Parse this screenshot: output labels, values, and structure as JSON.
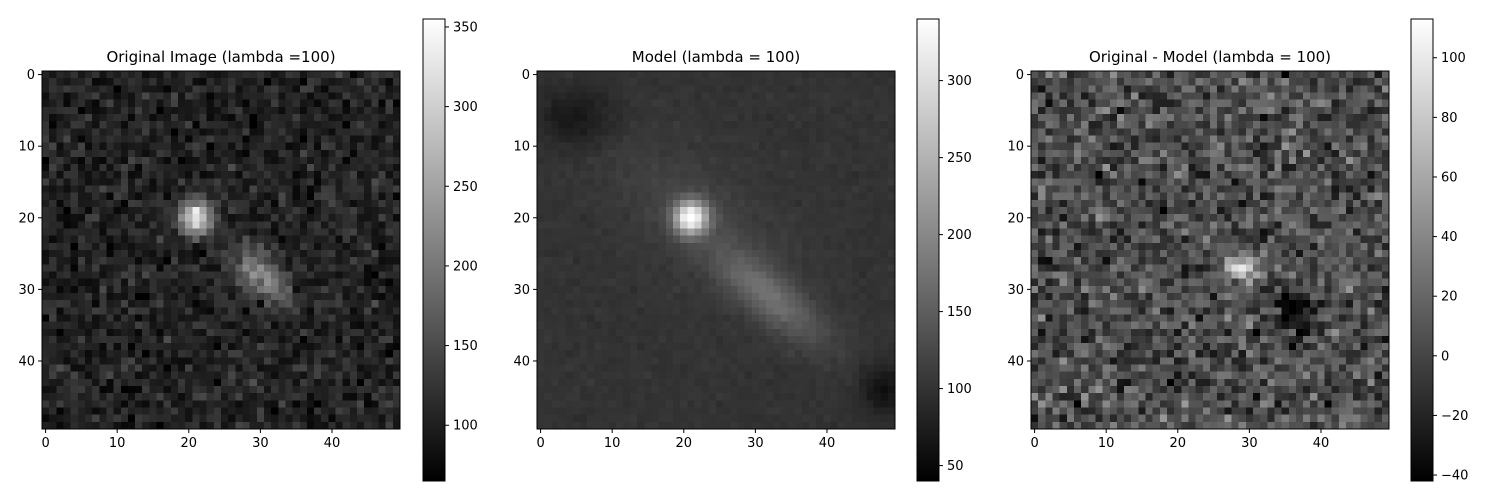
{
  "chart_data": [
    {
      "type": "heatmap",
      "title": "Original Image (lambda =100)",
      "xlabel": "",
      "ylabel": "",
      "grid": false,
      "colormap": "gray",
      "shape": [
        50,
        50
      ],
      "xlim": [
        -0.5,
        49.5
      ],
      "ylim": [
        49.5,
        -0.5
      ],
      "xticks": [
        0,
        10,
        20,
        30,
        40
      ],
      "yticks": [
        0,
        10,
        20,
        30,
        40
      ],
      "colorbar": {
        "min": 65,
        "max": 355,
        "ticks": [
          100,
          150,
          200,
          250,
          300,
          350
        ]
      },
      "background": {
        "level": 105,
        "noise": 18
      },
      "features": [
        {
          "kind": "point-source",
          "x": 21,
          "y": 20,
          "amplitude": 240,
          "sigma_x": 1.6,
          "sigma_y": 1.6,
          "angle_deg": 0
        },
        {
          "kind": "extended",
          "x": 30,
          "y": 28,
          "amplitude": 115,
          "sigma_x": 3.2,
          "sigma_y": 1.9,
          "angle_deg": 40
        }
      ]
    },
    {
      "type": "heatmap",
      "title": "Model (lambda = 100)",
      "xlabel": "",
      "ylabel": "",
      "grid": false,
      "colormap": "gray",
      "shape": [
        50,
        50
      ],
      "xlim": [
        -0.5,
        49.5
      ],
      "ylim": [
        49.5,
        -0.5
      ],
      "xticks": [
        0,
        10,
        20,
        30,
        40
      ],
      "yticks": [
        0,
        10,
        20,
        30,
        40
      ],
      "colorbar": {
        "min": 40,
        "max": 340,
        "ticks": [
          50,
          100,
          150,
          200,
          250,
          300
        ]
      },
      "background": {
        "level": 100,
        "noise": 3
      },
      "features": [
        {
          "kind": "point-source",
          "x": 21,
          "y": 20,
          "amplitude": 235,
          "sigma_x": 1.6,
          "sigma_y": 1.6,
          "angle_deg": 0
        },
        {
          "kind": "extended",
          "x": 32,
          "y": 31,
          "amplitude": 65,
          "sigma_x": 6.5,
          "sigma_y": 2.2,
          "angle_deg": 40
        },
        {
          "kind": "diffuse",
          "x": 22,
          "y": 20,
          "amplitude": 20,
          "sigma_x": 12,
          "sigma_y": 5,
          "angle_deg": 40
        },
        {
          "kind": "depression",
          "x": 5,
          "y": 6,
          "amplitude": -35,
          "sigma_x": 4,
          "sigma_y": 3,
          "angle_deg": 0
        },
        {
          "kind": "depression",
          "x": 48,
          "y": 44,
          "amplitude": -40,
          "sigma_x": 2.5,
          "sigma_y": 2.5,
          "angle_deg": 0
        }
      ]
    },
    {
      "type": "heatmap",
      "title": "Original - Model (lambda = 100)",
      "xlabel": "",
      "ylabel": "",
      "grid": false,
      "colormap": "gray",
      "shape": [
        50,
        50
      ],
      "xlim": [
        -0.5,
        49.5
      ],
      "ylim": [
        49.5,
        -0.5
      ],
      "xticks": [
        0,
        10,
        20,
        30,
        40
      ],
      "yticks": [
        0,
        10,
        20,
        30,
        40
      ],
      "colorbar": {
        "min": -42,
        "max": 113,
        "ticks": [
          -40,
          -20,
          0,
          20,
          40,
          60,
          80,
          100
        ]
      },
      "background": {
        "level": 5,
        "noise": 17
      },
      "features": [
        {
          "kind": "residual-peak",
          "x": 29,
          "y": 27,
          "amplitude": 85,
          "sigma_x": 1.6,
          "sigma_y": 1.3,
          "angle_deg": 0
        },
        {
          "kind": "residual-trough",
          "x": 36,
          "y": 33,
          "amplitude": -45,
          "sigma_x": 2.4,
          "sigma_y": 1.8,
          "angle_deg": 30
        },
        {
          "kind": "residual-trough",
          "x": 18,
          "y": 19,
          "amplitude": -25,
          "sigma_x": 0.8,
          "sigma_y": 0.8,
          "angle_deg": 0
        }
      ]
    }
  ]
}
